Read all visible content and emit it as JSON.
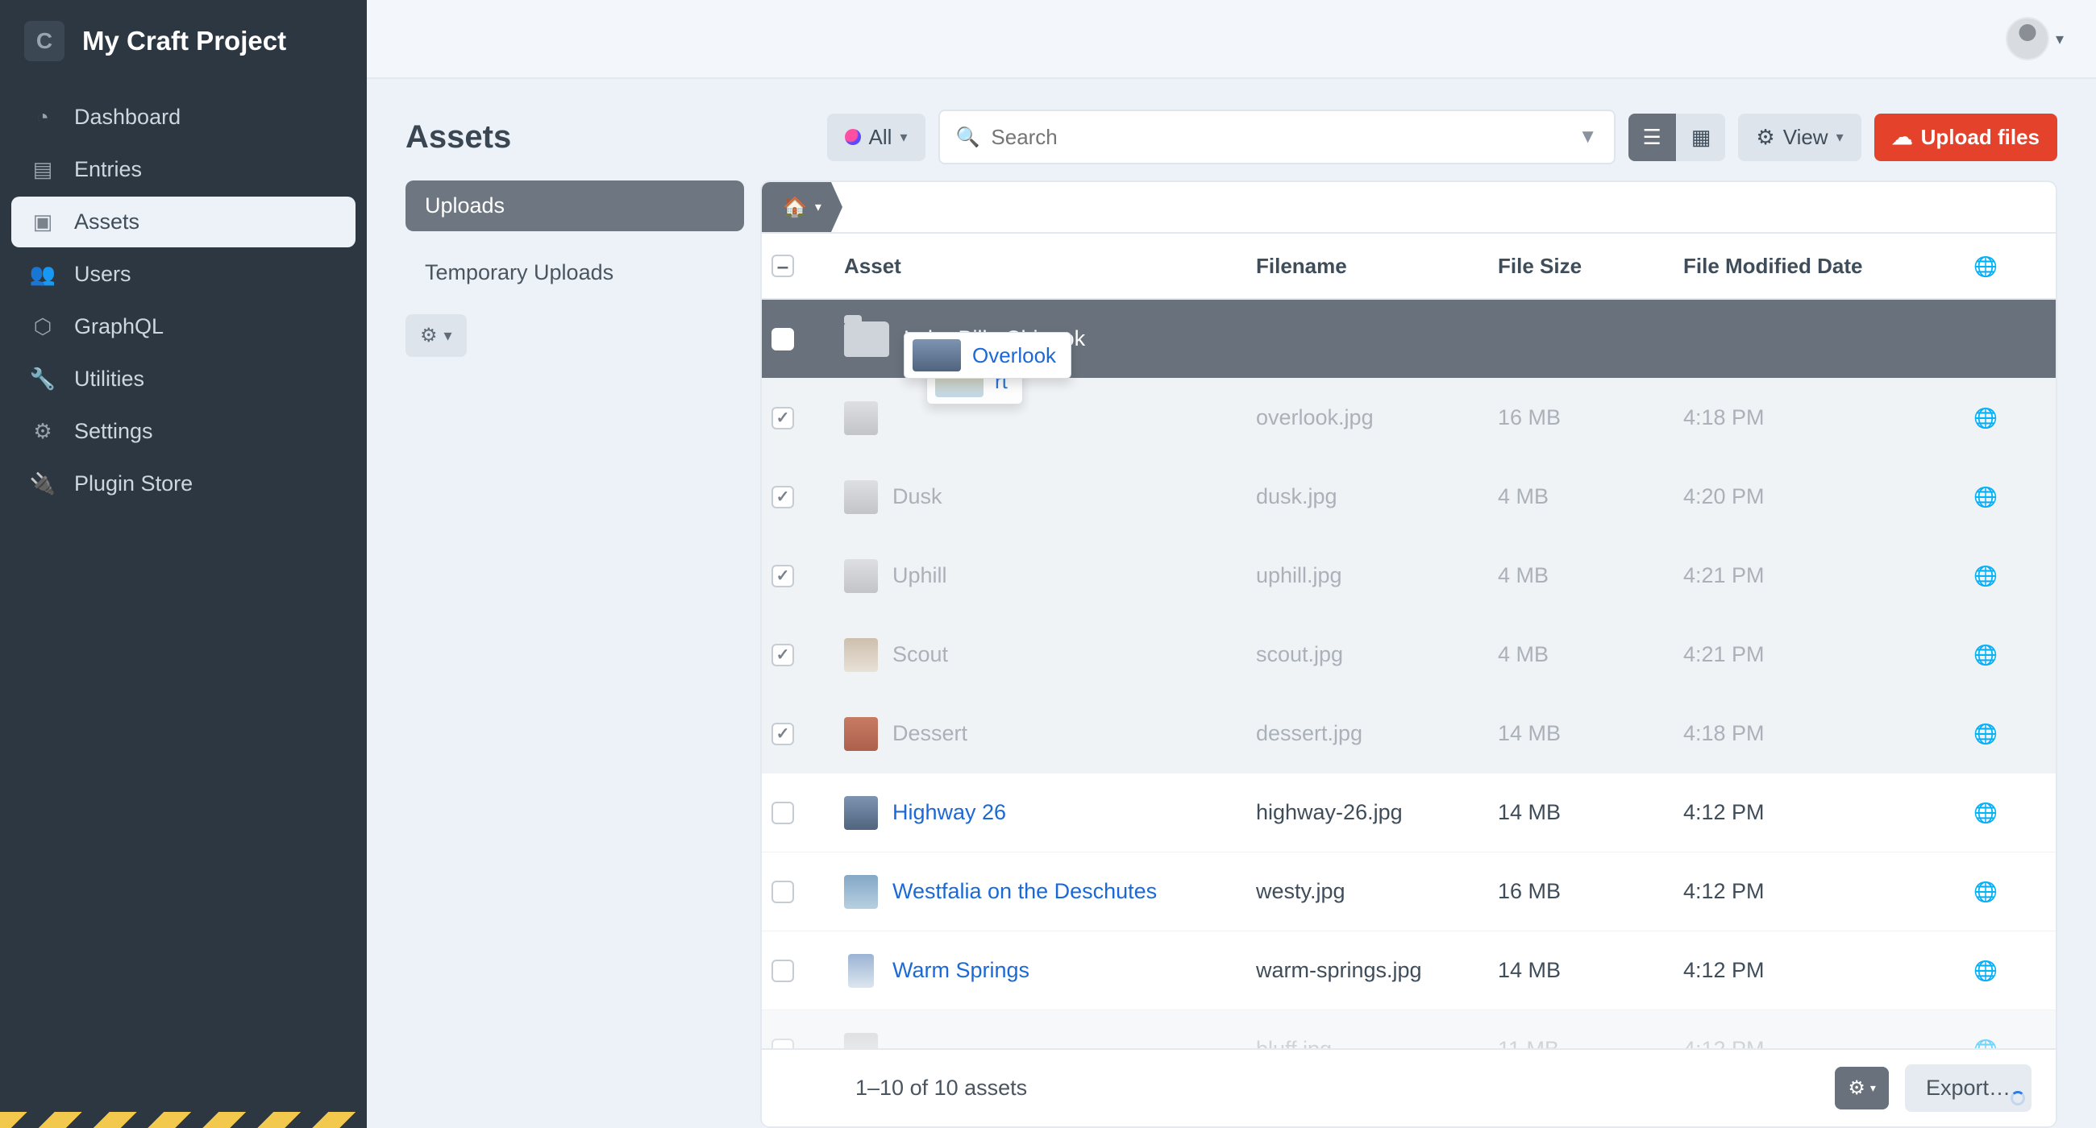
{
  "brand": {
    "name": "My Craft Project",
    "logo_letter": "C"
  },
  "nav": [
    {
      "label": "Dashboard",
      "icon": "◔"
    },
    {
      "label": "Entries",
      "icon": "▤"
    },
    {
      "label": "Assets",
      "icon": "▣",
      "active": true
    },
    {
      "label": "Users",
      "icon": "👥"
    },
    {
      "label": "GraphQL",
      "icon": "⬡"
    },
    {
      "label": "Utilities",
      "icon": "🔧"
    },
    {
      "label": "Settings",
      "icon": "⚙"
    },
    {
      "label": "Plugin Store",
      "icon": "🔌"
    }
  ],
  "toolbar": {
    "page_title": "Assets",
    "all_label": "All",
    "search_placeholder": "Search",
    "view_label": "View",
    "upload_label": "Upload files"
  },
  "sources": {
    "uploads": "Uploads",
    "temp": "Temporary Uploads"
  },
  "columns": {
    "asset": "Asset",
    "filename": "Filename",
    "size": "File Size",
    "modified": "File Modified Date"
  },
  "folder": {
    "name": "Lake-Billy-Chinook"
  },
  "drag_label": "Overlook",
  "drag_label_behind": "rt",
  "rows": [
    {
      "name": "",
      "filename": "overlook.jpg",
      "size": "16 MB",
      "modified": "4:18 PM",
      "checked": true,
      "greyed": true,
      "thumbcls": "t2",
      "globe": "grey"
    },
    {
      "name": "Dusk",
      "filename": "dusk.jpg",
      "size": "4 MB",
      "modified": "4:20 PM",
      "checked": true,
      "greyed": true,
      "thumbcls": "t2",
      "globe": "grey"
    },
    {
      "name": "Uphill",
      "filename": "uphill.jpg",
      "size": "4 MB",
      "modified": "4:21 PM",
      "checked": true,
      "greyed": true,
      "thumbcls": "t2",
      "globe": "grey"
    },
    {
      "name": "Scout",
      "filename": "scout.jpg",
      "size": "4 MB",
      "modified": "4:21 PM",
      "checked": true,
      "greyed": true,
      "thumbcls": "t3",
      "globe": "grey"
    },
    {
      "name": "Dessert",
      "filename": "dessert.jpg",
      "size": "14 MB",
      "modified": "4:18 PM",
      "checked": true,
      "greyed": true,
      "thumbcls": "t4",
      "globe": "grey"
    },
    {
      "name": "Highway 26",
      "filename": "highway-26.jpg",
      "size": "14 MB",
      "modified": "4:12 PM",
      "checked": false,
      "greyed": false,
      "thumbcls": "t5",
      "globe": "blue"
    },
    {
      "name": "Westfalia on the Deschutes",
      "filename": "westy.jpg",
      "size": "16 MB",
      "modified": "4:12 PM",
      "checked": false,
      "greyed": false,
      "thumbcls": "t6",
      "globe": "blue"
    },
    {
      "name": "Warm Springs",
      "filename": "warm-springs.jpg",
      "size": "14 MB",
      "modified": "4:12 PM",
      "checked": false,
      "greyed": false,
      "thumbcls": "t7",
      "globe": "blue"
    },
    {
      "name": "",
      "filename": "bluff.jpg",
      "size": "11 MB",
      "modified": "4:12 PM",
      "checked": false,
      "greyed": true,
      "thumbcls": "t8",
      "globe": "grey",
      "faded": true
    }
  ],
  "footer": {
    "count_text": "1–10 of 10 assets",
    "export_label": "Export…"
  },
  "colors": {
    "sidebar_bg": "#2d3742",
    "page_bg": "#edf2f8",
    "text": "#3f4d5a",
    "btn_grey": "#dde4ec",
    "btn_dark": "#69727c",
    "btn_red": "#e5422b",
    "link": "#1b69d6",
    "globe_blue": "#2f7be4",
    "border": "#e4e9ef"
  }
}
